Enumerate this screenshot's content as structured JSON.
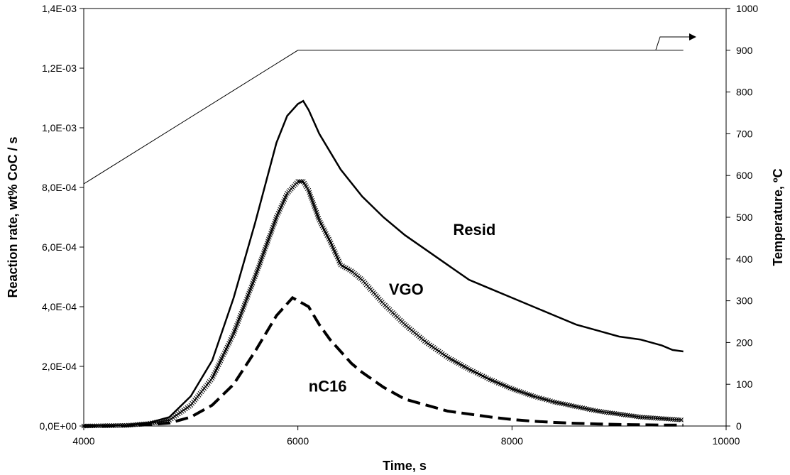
{
  "chart_data": {
    "type": "line",
    "xlabel": "Time, s",
    "ylabel": "Reaction rate, wt% CoC / s",
    "y2label": "Temperature, ºC",
    "xlim": [
      4000,
      10000
    ],
    "ylim": [
      0,
      0.0014
    ],
    "y2lim": [
      0,
      1000
    ],
    "x_ticks": [
      "4000",
      "6000",
      "8000",
      "10000"
    ],
    "x_tick_values": [
      4000,
      6000,
      8000,
      10000
    ],
    "y_ticks": [
      "0,0E+00",
      "2,0E-04",
      "4,0E-04",
      "6,0E-04",
      "8,0E-04",
      "1,0E-03",
      "1,2E-03",
      "1,4E-03"
    ],
    "y_tick_values": [
      0,
      0.0002,
      0.0004,
      0.0006,
      0.0008,
      0.001,
      0.0012,
      0.0014
    ],
    "y2_ticks": [
      "0",
      "100",
      "200",
      "300",
      "400",
      "500",
      "600",
      "700",
      "800",
      "900",
      "1000"
    ],
    "y2_tick_values": [
      0,
      100,
      200,
      300,
      400,
      500,
      600,
      700,
      800,
      900,
      1000
    ],
    "grid": false,
    "series": [
      {
        "name": "Resid",
        "axis": "left",
        "style": "solid-thick",
        "x": [
          4000,
          4400,
          4600,
          4800,
          5000,
          5200,
          5400,
          5600,
          5800,
          5900,
          6000,
          6050,
          6100,
          6200,
          6400,
          6600,
          6800,
          7000,
          7200,
          7400,
          7600,
          7800,
          8000,
          8200,
          8400,
          8600,
          8800,
          9000,
          9200,
          9400,
          9500,
          9600
        ],
        "y": [
          0.0,
          3e-06,
          1e-05,
          3e-05,
          0.0001,
          0.00022,
          0.00043,
          0.00068,
          0.00095,
          0.00104,
          0.00108,
          0.00109,
          0.00106,
          0.00098,
          0.00086,
          0.00077,
          0.0007,
          0.00064,
          0.00059,
          0.00054,
          0.00049,
          0.00046,
          0.00043,
          0.0004,
          0.00037,
          0.00034,
          0.00032,
          0.0003,
          0.00029,
          0.00027,
          0.000255,
          0.00025
        ]
      },
      {
        "name": "VGO",
        "axis": "left",
        "style": "x-markers",
        "x": [
          4000,
          4400,
          4600,
          4800,
          5000,
          5200,
          5400,
          5600,
          5800,
          5900,
          6000,
          6050,
          6100,
          6200,
          6300,
          6400,
          6500,
          6600,
          6800,
          7000,
          7200,
          7400,
          7600,
          7800,
          8000,
          8200,
          8400,
          8600,
          8800,
          9000,
          9200,
          9400,
          9600
        ],
        "y": [
          0.0,
          2e-06,
          8e-06,
          2e-05,
          7e-05,
          0.00016,
          0.00031,
          0.0005,
          0.0007,
          0.00078,
          0.00082,
          0.00082,
          0.00079,
          0.00069,
          0.00062,
          0.00054,
          0.00052,
          0.00049,
          0.00041,
          0.00034,
          0.00028,
          0.00023,
          0.00019,
          0.000155,
          0.000125,
          0.0001,
          8e-05,
          6.5e-05,
          5e-05,
          4e-05,
          3e-05,
          2.5e-05,
          2e-05
        ]
      },
      {
        "name": "nC16",
        "axis": "left",
        "style": "dashed-thick",
        "x": [
          4000,
          4400,
          4600,
          4800,
          5000,
          5200,
          5400,
          5600,
          5800,
          5900,
          5950,
          6000,
          6100,
          6200,
          6300,
          6400,
          6500,
          6600,
          6800,
          7000,
          7200,
          7400,
          7600,
          7800,
          8000,
          8200,
          8400,
          8600,
          8800,
          9000,
          9200,
          9400,
          9600
        ],
        "y": [
          0.0,
          1e-06,
          4e-06,
          1e-05,
          3e-05,
          7e-05,
          0.00014,
          0.00025,
          0.00037,
          0.00041,
          0.00043,
          0.00042,
          0.0004,
          0.00034,
          0.00029,
          0.00025,
          0.00021,
          0.00018,
          0.00013,
          9e-05,
          7e-05,
          5e-05,
          4e-05,
          3e-05,
          2.2e-05,
          1.6e-05,
          1.2e-05,
          9e-06,
          7e-06,
          5e-06,
          4e-06,
          3e-06,
          3e-06
        ]
      },
      {
        "name": "Temperature",
        "axis": "right",
        "style": "thin",
        "x": [
          4000,
          6000,
          9600
        ],
        "y": [
          580,
          900,
          900
        ]
      }
    ],
    "annotations": [
      {
        "text": "Resid",
        "x": 7450,
        "y": 0.00064
      },
      {
        "text": "VGO",
        "x": 6850,
        "y": 0.00044
      },
      {
        "text": "nC16",
        "x": 6100,
        "y": 0.000115
      }
    ]
  }
}
